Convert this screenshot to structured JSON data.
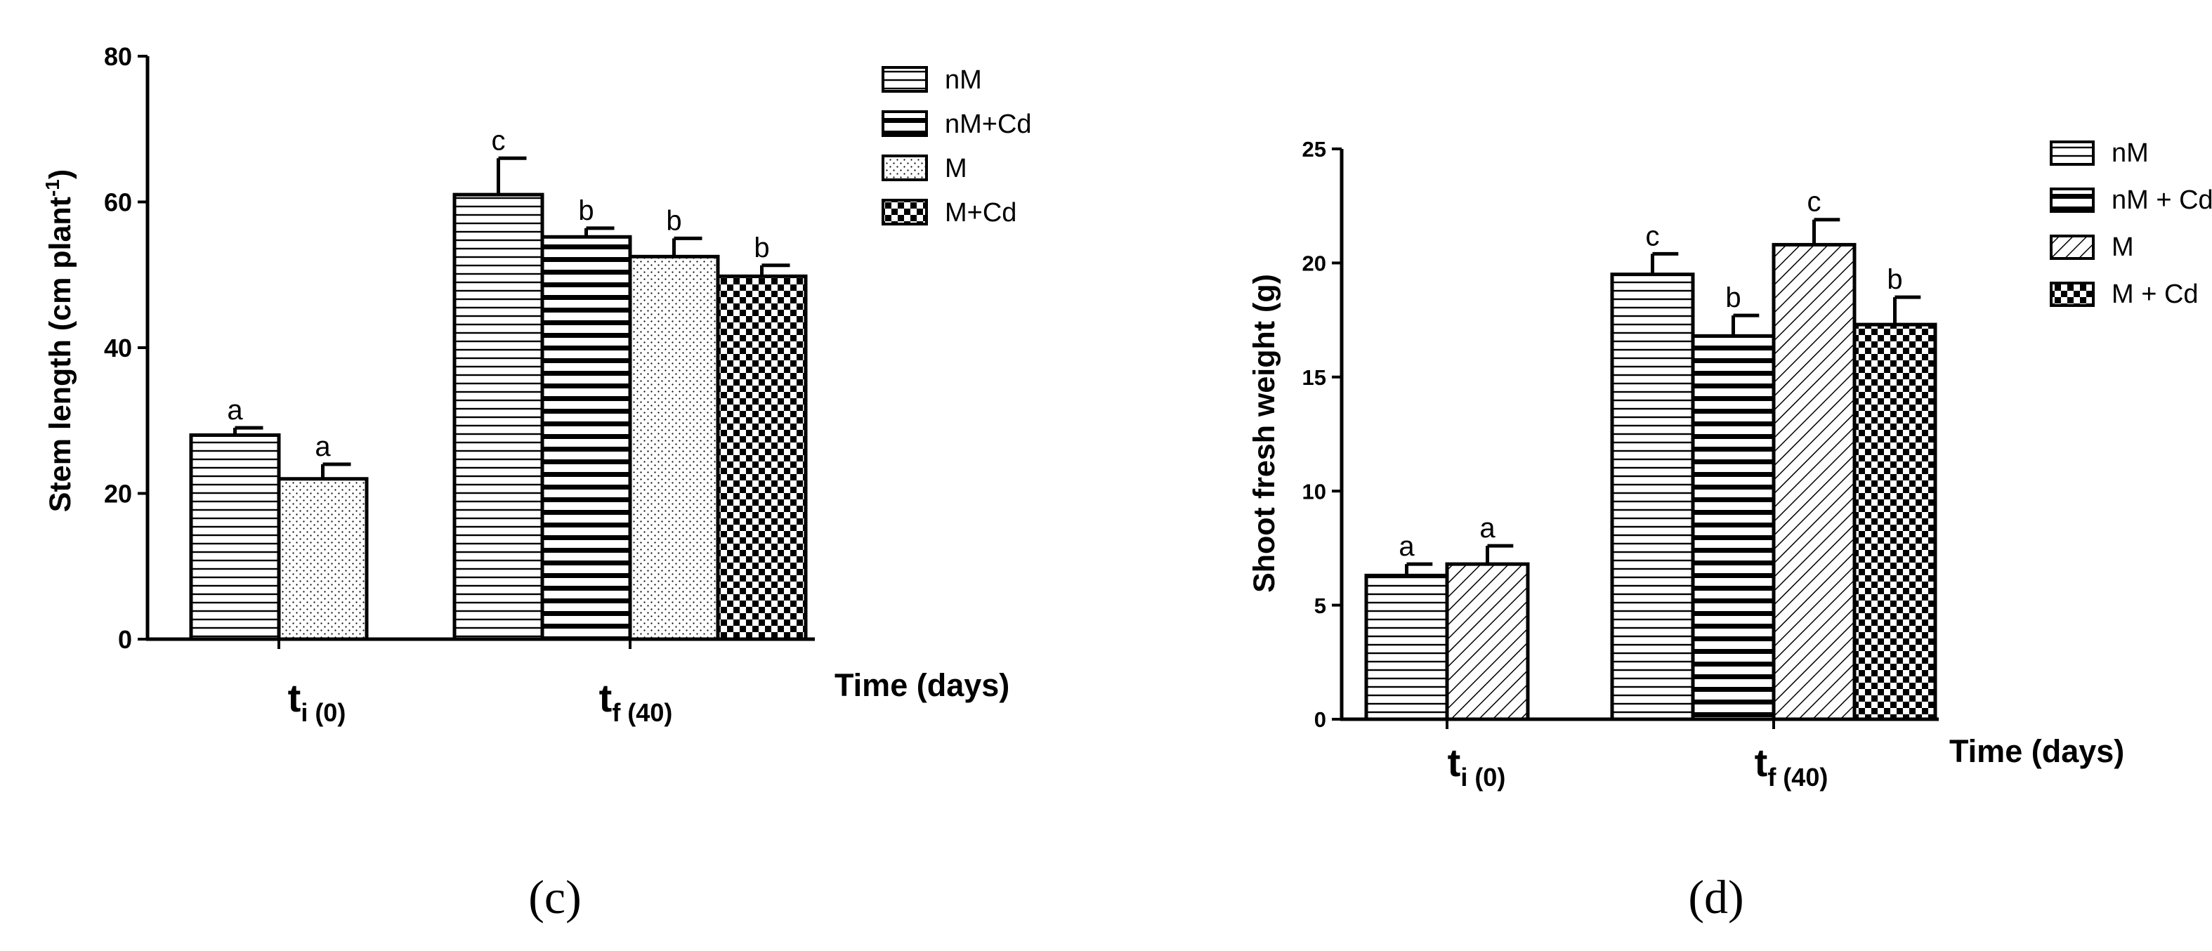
{
  "chart_data": [
    {
      "type": "bar",
      "panel_label": "(c)",
      "ylabel": "Stem length (cm plant-1)",
      "ylabel_main": "Stem length (cm plant",
      "ylabel_sup": "-1",
      "ylabel_close": ")",
      "xlabel": "Time (days)",
      "ylim": [
        0,
        80
      ],
      "yticks": [
        "0",
        "20",
        "40",
        "60",
        "80"
      ],
      "categories": [
        {
          "label": "t",
          "sub": "i (0)"
        },
        {
          "label": "t",
          "sub": "f (40)"
        }
      ],
      "legend_position": "top-right",
      "series": [
        {
          "name": "nM",
          "pattern": "hlines",
          "values": [
            28,
            61
          ],
          "errors": [
            1,
            5
          ],
          "letters": [
            "a",
            "c"
          ]
        },
        {
          "name": "nM+Cd",
          "pattern": "hbold",
          "values": [
            null,
            55.2
          ],
          "errors": [
            null,
            1.2
          ],
          "letters": [
            null,
            "b"
          ]
        },
        {
          "name": "M",
          "pattern": "dots",
          "values": [
            22,
            52.5
          ],
          "errors": [
            2,
            2.5
          ],
          "letters": [
            "a",
            "b"
          ]
        },
        {
          "name": "M+Cd",
          "pattern": "checker",
          "values": [
            null,
            49.8
          ],
          "errors": [
            null,
            1.5
          ],
          "letters": [
            null,
            "b"
          ]
        }
      ]
    },
    {
      "type": "bar",
      "panel_label": "(d)",
      "ylabel": "Shoot fresh weight  (g)",
      "xlabel": "Time (days)",
      "ylim": [
        0,
        25
      ],
      "yticks": [
        "0",
        "5",
        "10",
        "15",
        "20",
        "25"
      ],
      "categories": [
        {
          "label": "t",
          "sub": "i (0)"
        },
        {
          "label": "t",
          "sub": "f (40)"
        }
      ],
      "legend_position": "top-right",
      "series": [
        {
          "name": "nM",
          "pattern": "hlines",
          "values": [
            6.3,
            19.5
          ],
          "errors": [
            0.5,
            0.9
          ],
          "letters": [
            "a",
            "c"
          ]
        },
        {
          "name": "nM + Cd",
          "pattern": "hbold",
          "values": [
            null,
            16.8
          ],
          "errors": [
            null,
            0.9
          ],
          "letters": [
            null,
            "b"
          ]
        },
        {
          "name": "M",
          "pattern": "diag",
          "values": [
            6.8,
            20.8
          ],
          "errors": [
            0.8,
            1.1
          ],
          "letters": [
            "a",
            "c"
          ]
        },
        {
          "name": "M + Cd",
          "pattern": "checker",
          "values": [
            null,
            17.3
          ],
          "errors": [
            null,
            1.2
          ],
          "letters": [
            null,
            "b"
          ]
        }
      ]
    }
  ]
}
